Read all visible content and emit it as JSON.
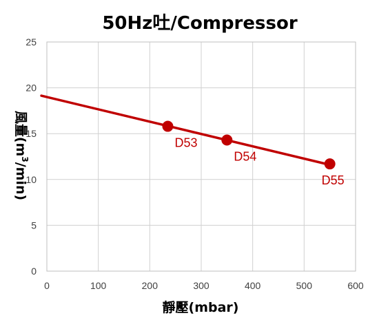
{
  "chart_data": {
    "type": "line",
    "title": "50Hz吐/Compressor",
    "xlabel": "靜壓(mbar)",
    "ylabel_text": "風量(m",
    "ylabel_sup": "3",
    "ylabel_tail": "/min)",
    "xlim": [
      0,
      600
    ],
    "ylim": [
      0,
      25
    ],
    "x_ticks": [
      0,
      100,
      200,
      300,
      400,
      500,
      600
    ],
    "y_ticks": [
      0,
      5,
      10,
      15,
      20,
      25
    ],
    "x_tick_labels": [
      "0",
      "100",
      "200",
      "300",
      "400",
      "500",
      "600"
    ],
    "y_tick_labels": [
      "0",
      "5",
      "10",
      "15",
      "20",
      "25"
    ],
    "grid": true,
    "legend": false,
    "series": [
      {
        "line": [
          [
            -10,
            19.2
          ],
          [
            550,
            11.6
          ]
        ],
        "points": [
          {
            "label": "D53",
            "x": 235,
            "y": 15.8
          },
          {
            "label": "D54",
            "x": 350,
            "y": 14.3
          },
          {
            "label": "D55",
            "x": 550,
            "y": 11.7
          }
        ],
        "color": "#c00000"
      }
    ]
  }
}
